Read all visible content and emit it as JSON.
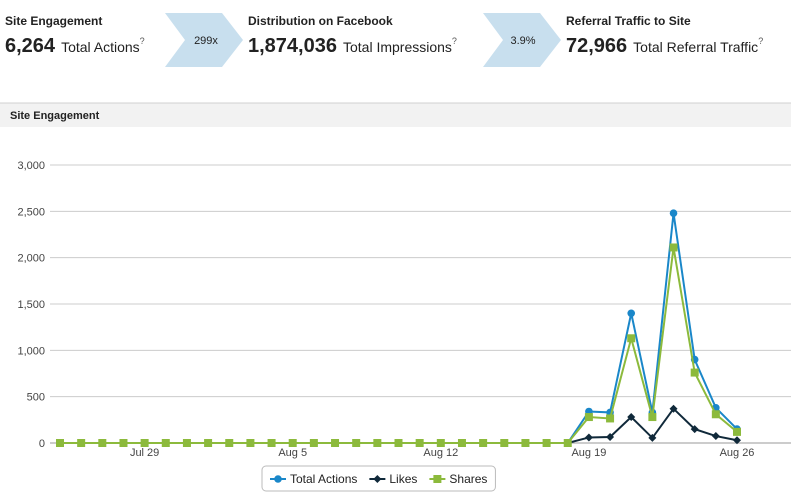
{
  "stats": [
    {
      "title": "Site Engagement",
      "value": "6,264",
      "label": "Total Actions",
      "help": "?"
    },
    {
      "title": "Distribution on Facebook",
      "value": "1,874,036",
      "label": "Total Impressions",
      "help": "?"
    },
    {
      "title": "Referral Traffic to Site",
      "value": "72,966",
      "label": "Total Referral Traffic",
      "help": "?"
    }
  ],
  "arrows": [
    "299x",
    "3.9%"
  ],
  "chart_data": {
    "type": "line",
    "title": "Site Engagement",
    "categories": [
      null,
      null,
      null,
      null,
      "Jul 29",
      null,
      null,
      null,
      null,
      null,
      null,
      "Aug 5",
      null,
      null,
      null,
      null,
      null,
      null,
      "Aug 12",
      null,
      null,
      null,
      null,
      null,
      null,
      "Aug 19",
      null,
      null,
      null,
      null,
      null,
      null,
      "Aug 26"
    ],
    "series": [
      {
        "name": "Total Actions",
        "color": "#1a87c9",
        "marker": "circle",
        "values": [
          0,
          0,
          0,
          0,
          0,
          0,
          0,
          0,
          0,
          0,
          0,
          0,
          0,
          0,
          0,
          0,
          0,
          0,
          0,
          0,
          0,
          0,
          0,
          0,
          0,
          340,
          330,
          1400,
          330,
          2480,
          900,
          380,
          150
        ]
      },
      {
        "name": "Likes",
        "color": "#10293a",
        "marker": "diamond",
        "values": [
          0,
          0,
          0,
          0,
          0,
          0,
          0,
          0,
          0,
          0,
          0,
          0,
          0,
          0,
          0,
          0,
          0,
          0,
          0,
          0,
          0,
          0,
          0,
          0,
          0,
          60,
          65,
          280,
          55,
          370,
          150,
          75,
          30
        ]
      },
      {
        "name": "Shares",
        "color": "#8cba3c",
        "marker": "square",
        "values": [
          0,
          0,
          0,
          0,
          0,
          0,
          0,
          0,
          0,
          0,
          0,
          0,
          0,
          0,
          0,
          0,
          0,
          0,
          0,
          0,
          0,
          0,
          0,
          0,
          0,
          280,
          265,
          1130,
          280,
          2110,
          760,
          310,
          120
        ]
      }
    ],
    "ylim": [
      0,
      3000
    ],
    "yticks": [
      0,
      {
        "value": 500,
        "label": "500"
      },
      {
        "value": 1000,
        "label": "1,000"
      },
      {
        "value": 1500,
        "label": "1,500"
      },
      {
        "value": 2000,
        "label": "2,000"
      },
      {
        "value": 2500,
        "label": "2,500"
      },
      {
        "value": 3000,
        "label": "3,000"
      }
    ],
    "grid": true,
    "legend": "bottom"
  }
}
